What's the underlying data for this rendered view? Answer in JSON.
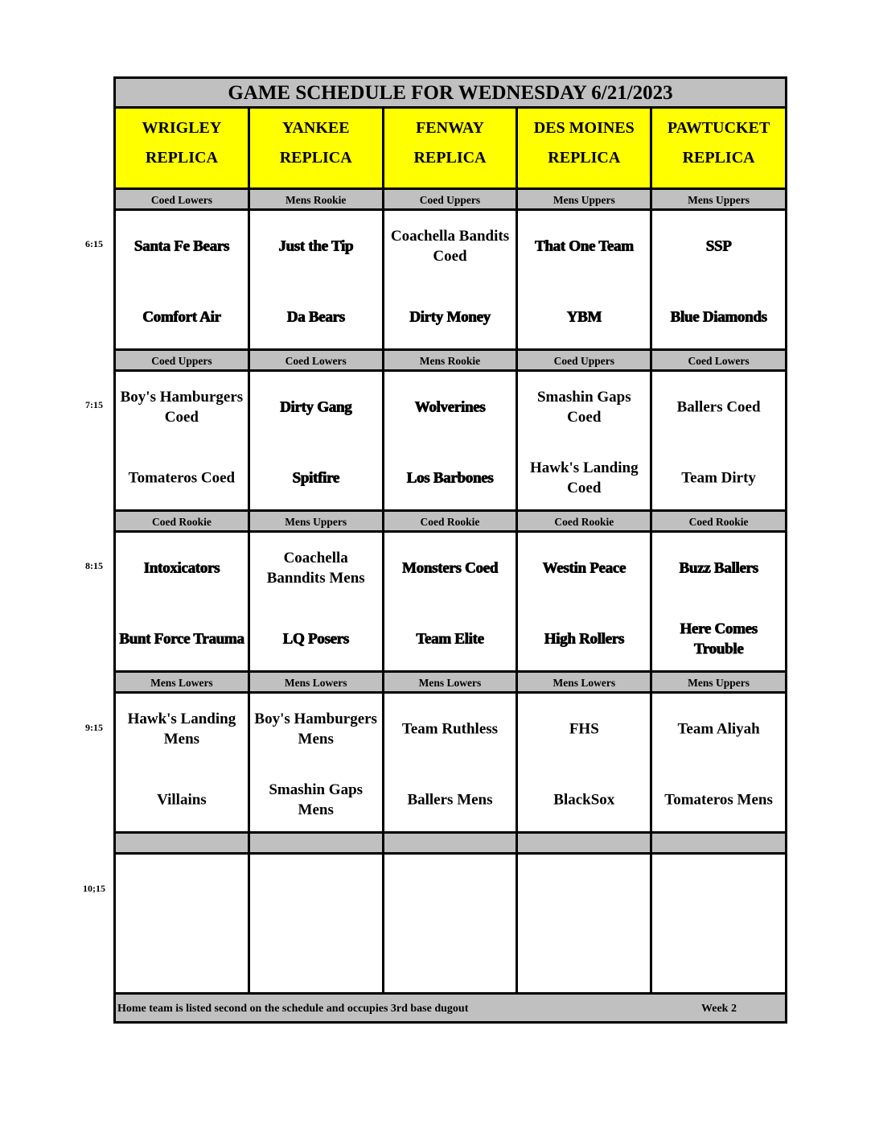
{
  "title": "GAME SCHEDULE FOR WEDNESDAY 6/21/2023",
  "fields": [
    {
      "name": "WRIGLEY",
      "sub": "REPLICA"
    },
    {
      "name": "YANKEE",
      "sub": "REPLICA"
    },
    {
      "name": "FENWAY",
      "sub": "REPLICA"
    },
    {
      "name": "DES MOINES",
      "sub": "REPLICA"
    },
    {
      "name": "PAWTUCKET",
      "sub": "REPLICA"
    }
  ],
  "header_color": "#ffff00",
  "band_color": "#c0c0c0",
  "slots": [
    {
      "time": "6:15",
      "divisions": [
        "Coed Lowers",
        "Mens Rookie",
        "Coed Uppers",
        "Mens Uppers",
        "Mens Uppers"
      ],
      "games": [
        {
          "away": "Santa Fe Bears",
          "home": "Comfort Air",
          "emphasis": true
        },
        {
          "away": "Just the Tip",
          "home": "Da Bears",
          "emphasis": true
        },
        {
          "away": "Coachella Bandits Coed",
          "home": "Dirty Money",
          "emphasis": false,
          "home_emphasis": true
        },
        {
          "away": "That One Team",
          "home": "YBM",
          "emphasis": true
        },
        {
          "away": "SSP",
          "home": "Blue Diamonds",
          "emphasis": true
        }
      ]
    },
    {
      "time": "7:15",
      "divisions": [
        "Coed Uppers",
        "Coed Lowers",
        "Mens Rookie",
        "Coed Uppers",
        "Coed Lowers"
      ],
      "games": [
        {
          "away": "Boy's Hamburgers Coed",
          "home": "Tomateros Coed",
          "emphasis": false
        },
        {
          "away": "Dirty Gang",
          "home": "Spitfire",
          "emphasis": true
        },
        {
          "away": "Wolverines",
          "home": "Los Barbones",
          "emphasis": true
        },
        {
          "away": "Smashin Gaps Coed",
          "home": "Hawk's Landing Coed",
          "emphasis": false
        },
        {
          "away": "Ballers Coed",
          "home": "Team Dirty",
          "emphasis": false
        }
      ]
    },
    {
      "time": "8:15",
      "divisions": [
        "Coed Rookie",
        "Mens Uppers",
        "Coed Rookie",
        "Coed Rookie",
        "Coed Rookie"
      ],
      "games": [
        {
          "away": "Intoxicators",
          "home": "Bunt Force Trauma",
          "emphasis": true
        },
        {
          "away": "Coachella Banndits Mens",
          "home": "LQ Posers",
          "emphasis": false,
          "home_emphasis": true
        },
        {
          "away": "Monsters Coed",
          "home": "Team Elite",
          "emphasis": true
        },
        {
          "away": "Westin Peace",
          "home": "High Rollers",
          "emphasis": true
        },
        {
          "away": "Buzz Ballers",
          "home": "Here Comes Trouble",
          "emphasis": true
        }
      ]
    },
    {
      "time": "9:15",
      "divisions": [
        "Mens Lowers",
        "Mens Lowers",
        "Mens Lowers",
        "Mens Lowers",
        "Mens Uppers"
      ],
      "games": [
        {
          "away": "Hawk's Landing Mens",
          "home": "Villains",
          "emphasis": false
        },
        {
          "away": "Boy's Hamburgers Mens",
          "home": "Smashin Gaps Mens",
          "emphasis": false
        },
        {
          "away": "Team Ruthless",
          "home": "Ballers Mens",
          "emphasis": false
        },
        {
          "away": "FHS",
          "home": "BlackSox",
          "emphasis": false
        },
        {
          "away": "Team Aliyah",
          "home": "Tomateros Mens",
          "emphasis": false
        }
      ]
    },
    {
      "time": "10;15",
      "divisions": [
        "",
        "",
        "",
        "",
        ""
      ],
      "games": [
        {
          "away": "",
          "home": ""
        },
        {
          "away": "",
          "home": ""
        },
        {
          "away": "",
          "home": ""
        },
        {
          "away": "",
          "home": ""
        },
        {
          "away": "",
          "home": ""
        }
      ]
    }
  ],
  "footer": {
    "note": "Home team is listed second on the schedule and occupies 3rd base dugout",
    "week": "Week 2"
  }
}
